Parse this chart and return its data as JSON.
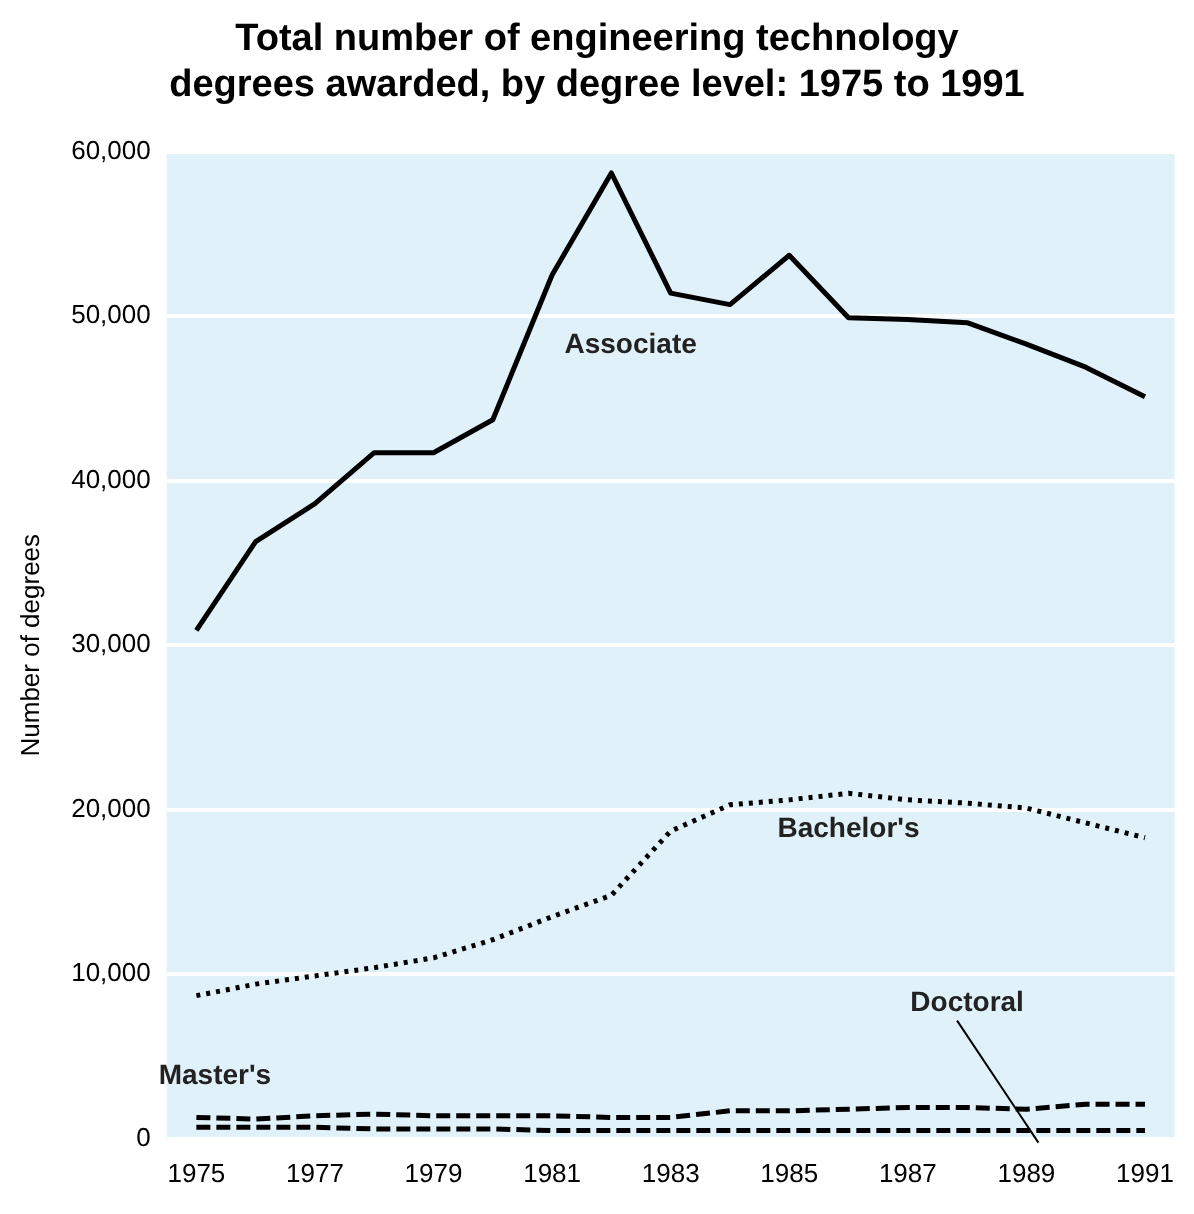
{
  "chart_data": {
    "type": "line",
    "title": "Total number of engineering technology degrees awarded, by degree level: 1975 to 1991",
    "ylabel": "Number of degrees",
    "x": [
      1975,
      1976,
      1977,
      1978,
      1979,
      1980,
      1981,
      1982,
      1983,
      1984,
      1985,
      1986,
      1987,
      1988,
      1989,
      1990,
      1991
    ],
    "series": [
      {
        "name": "Associate",
        "color": "#000000",
        "line_style": "solid",
        "values": [
          30900,
          36300,
          38600,
          41700,
          41700,
          43700,
          52500,
          58700,
          51400,
          50700,
          53700,
          49900,
          49800,
          49600,
          48300,
          46900,
          45100
        ]
      },
      {
        "name": "Bachelor's",
        "color": "#000000",
        "line_style": "dotted",
        "values": [
          8700,
          9400,
          9900,
          10400,
          11000,
          12100,
          13500,
          14800,
          18700,
          20300,
          20600,
          21000,
          20600,
          20400,
          20100,
          19200,
          18300
        ]
      },
      {
        "name": "Master's",
        "color": "#000000",
        "line_style": "dashed",
        "values": [
          1300,
          1200,
          1400,
          1500,
          1400,
          1400,
          1400,
          1300,
          1300,
          1700,
          1700,
          1800,
          1900,
          1900,
          1800,
          2100,
          2100
        ]
      },
      {
        "name": "Doctoral",
        "color": "#000000",
        "line_style": "dashed",
        "values": [
          700,
          700,
          700,
          600,
          600,
          600,
          500,
          500,
          500,
          500,
          500,
          500,
          500,
          500,
          500,
          500,
          500
        ]
      }
    ],
    "xlim": [
      1974.5,
      1991.5
    ],
    "xticks": [
      1975,
      1977,
      1979,
      1981,
      1983,
      1985,
      1987,
      1989,
      1991
    ],
    "ylim": [
      0,
      60000
    ],
    "yticks": [
      {
        "value": 0,
        "label": "0"
      },
      {
        "value": 10000,
        "label": "10,000"
      },
      {
        "value": 20000,
        "label": "20,000"
      },
      {
        "value": 30000,
        "label": "30,000"
      },
      {
        "value": 40000,
        "label": "40,000"
      },
      {
        "value": 50000,
        "label": "50,000"
      },
      {
        "value": 60000,
        "label": "60,000"
      }
    ],
    "grid": "y",
    "legend": false,
    "marker": "none"
  }
}
